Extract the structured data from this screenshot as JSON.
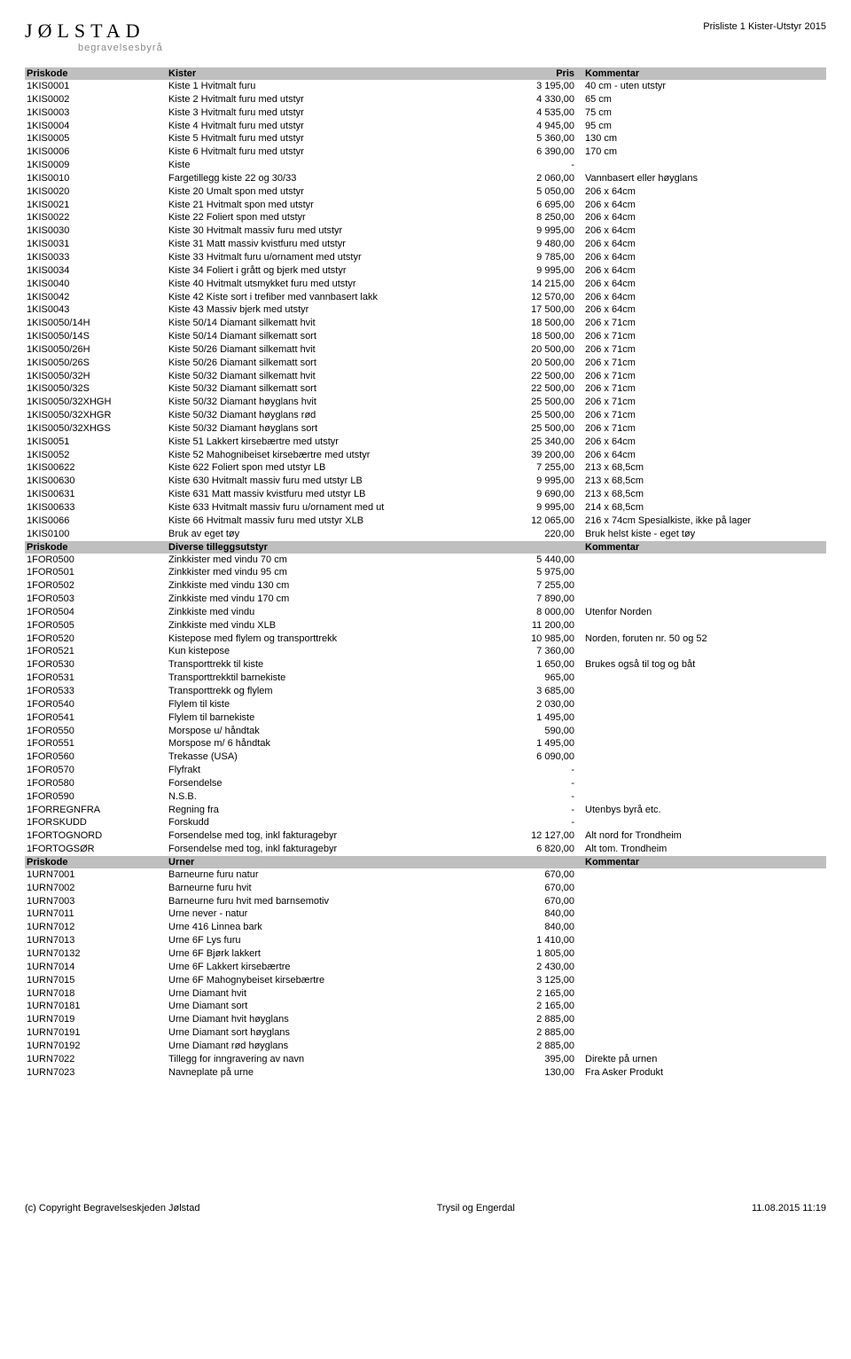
{
  "doc_title": "Prisliste 1 Kister-Utstyr 2015",
  "logo": {
    "text": "JØLSTAD",
    "sub": "begravelsesbyrå"
  },
  "sections": [
    {
      "header": {
        "code": "Priskode",
        "desc": "Kister",
        "price": "Pris",
        "comment": "Kommentar"
      },
      "rows": [
        {
          "code": "1KIS0001",
          "desc": "Kiste 1 Hvitmalt furu",
          "price": "3 195,00",
          "comment": "40 cm - uten utstyr"
        },
        {
          "code": "1KIS0002",
          "desc": "Kiste 2 Hvitmalt furu med utstyr",
          "price": "4 330,00",
          "comment": "65 cm"
        },
        {
          "code": "1KIS0003",
          "desc": "Kiste 3 Hvitmalt furu med utstyr",
          "price": "4 535,00",
          "comment": "75 cm"
        },
        {
          "code": "1KIS0004",
          "desc": "Kiste 4 Hvitmalt furu med utstyr",
          "price": "4 945,00",
          "comment": "95 cm"
        },
        {
          "code": "1KIS0005",
          "desc": "Kiste 5 Hvitmalt furu med utstyr",
          "price": "5 360,00",
          "comment": "130 cm"
        },
        {
          "code": "1KIS0006",
          "desc": "Kiste 6 Hvitmalt furu med utstyr",
          "price": "6 390,00",
          "comment": "170 cm"
        },
        {
          "code": "1KIS0009",
          "desc": "Kiste",
          "price": "-",
          "comment": ""
        },
        {
          "code": "1KIS0010",
          "desc": "Fargetillegg kiste 22 og 30/33",
          "price": "2 060,00",
          "comment": "Vannbasert eller høyglans"
        },
        {
          "code": "1KIS0020",
          "desc": "Kiste 20 Umalt spon med utstyr",
          "price": "5 050,00",
          "comment": "206 x 64cm"
        },
        {
          "code": "1KIS0021",
          "desc": "Kiste 21 Hvitmalt spon med utstyr",
          "price": "6 695,00",
          "comment": "206 x 64cm"
        },
        {
          "code": "1KIS0022",
          "desc": "Kiste 22 Foliert spon med utstyr",
          "price": "8 250,00",
          "comment": "206 x 64cm"
        },
        {
          "code": "1KIS0030",
          "desc": "Kiste 30 Hvitmalt massiv furu med utstyr",
          "price": "9 995,00",
          "comment": "206 x 64cm"
        },
        {
          "code": "1KIS0031",
          "desc": "Kiste 31 Matt massiv kvistfuru med utstyr",
          "price": "9 480,00",
          "comment": "206 x 64cm"
        },
        {
          "code": "1KIS0033",
          "desc": "Kiste 33 Hvitmalt furu u/ornament med utstyr",
          "price": "9 785,00",
          "comment": "206 x 64cm"
        },
        {
          "code": "1KIS0034",
          "desc": "Kiste 34 Foliert i grått og bjerk med utstyr",
          "price": "9 995,00",
          "comment": "206 x 64cm"
        },
        {
          "code": "1KIS0040",
          "desc": "Kiste 40 Hvitmalt utsmykket furu med utstyr",
          "price": "14 215,00",
          "comment": "206 x 64cm"
        },
        {
          "code": "1KIS0042",
          "desc": "Kiste 42 Kiste sort i trefiber med vannbasert lakk",
          "price": "12 570,00",
          "comment": "206 x 64cm"
        },
        {
          "code": "1KIS0043",
          "desc": "Kiste 43 Massiv bjerk med utstyr",
          "price": "17 500,00",
          "comment": "206 x 64cm"
        },
        {
          "code": "1KIS0050/14H",
          "desc": "Kiste 50/14 Diamant silkematt hvit",
          "price": "18 500,00",
          "comment": "206 x 71cm"
        },
        {
          "code": "1KIS0050/14S",
          "desc": "Kiste 50/14 Diamant silkematt sort",
          "price": "18 500,00",
          "comment": "206 x 71cm"
        },
        {
          "code": "1KIS0050/26H",
          "desc": "Kiste 50/26 Diamant silkematt hvit",
          "price": "20 500,00",
          "comment": "206 x 71cm"
        },
        {
          "code": "1KIS0050/26S",
          "desc": "Kiste 50/26 Diamant silkematt sort",
          "price": "20 500,00",
          "comment": "206 x 71cm"
        },
        {
          "code": "1KIS0050/32H",
          "desc": "Kiste 50/32 Diamant silkematt hvit",
          "price": "22 500,00",
          "comment": "206 x 71cm"
        },
        {
          "code": "1KIS0050/32S",
          "desc": "Kiste 50/32 Diamant silkematt sort",
          "price": "22 500,00",
          "comment": "206 x 71cm"
        },
        {
          "code": "1KIS0050/32XHGH",
          "desc": "Kiste 50/32 Diamant høyglans hvit",
          "price": "25 500,00",
          "comment": "206 x 71cm"
        },
        {
          "code": "1KIS0050/32XHGR",
          "desc": "Kiste 50/32 Diamant høyglans rød",
          "price": "25 500,00",
          "comment": "206 x 71cm"
        },
        {
          "code": "1KIS0050/32XHGS",
          "desc": "Kiste 50/32 Diamant høyglans sort",
          "price": "25 500,00",
          "comment": "206 x 71cm"
        },
        {
          "code": "1KIS0051",
          "desc": "Kiste 51 Lakkert kirsebærtre med utstyr",
          "price": "25 340,00",
          "comment": "206 x 64cm"
        },
        {
          "code": "1KIS0052",
          "desc": "Kiste 52 Mahognibeiset kirsebærtre med utstyr",
          "price": "39 200,00",
          "comment": "206 x 64cm"
        },
        {
          "code": "1KIS00622",
          "desc": "Kiste 622 Foliert spon med utstyr LB",
          "price": "7 255,00",
          "comment": "213 x 68,5cm"
        },
        {
          "code": "1KIS00630",
          "desc": "Kiste 630 Hvitmalt massiv furu med utstyr LB",
          "price": "9 995,00",
          "comment": "213 x 68,5cm"
        },
        {
          "code": "1KIS00631",
          "desc": "Kiste 631 Matt massiv kvistfuru med utstyr LB",
          "price": "9 690,00",
          "comment": "213 x 68,5cm"
        },
        {
          "code": "1KIS00633",
          "desc": "Kiste 633 Hvitmalt massiv furu u/ornament med ut",
          "price": "9 995,00",
          "comment": "214 x 68,5cm"
        },
        {
          "code": "1KIS0066",
          "desc": "Kiste 66 Hvitmalt massiv furu med utstyr XLB",
          "price": "12 065,00",
          "comment": "216 x 74cm Spesialkiste, ikke på lager"
        },
        {
          "code": "1KIS0100",
          "desc": "Bruk av eget tøy",
          "price": "220,00",
          "comment": "Bruk helst kiste - eget tøy"
        }
      ]
    },
    {
      "header": {
        "code": "Priskode",
        "desc": "Diverse  tilleggsutstyr",
        "price": "",
        "comment": "Kommentar"
      },
      "rows": [
        {
          "code": "1FOR0500",
          "desc": "Zinkkister med vindu 70 cm",
          "price": "5 440,00",
          "comment": ""
        },
        {
          "code": "1FOR0501",
          "desc": "Zinkkister med vindu 95 cm",
          "price": "5 975,00",
          "comment": ""
        },
        {
          "code": "1FOR0502",
          "desc": "Zinkkiste med vindu 130 cm",
          "price": "7 255,00",
          "comment": ""
        },
        {
          "code": "1FOR0503",
          "desc": "Zinkkiste med vindu 170 cm",
          "price": "7 890,00",
          "comment": ""
        },
        {
          "code": "1FOR0504",
          "desc": "Zinkkiste med vindu",
          "price": "8 000,00",
          "comment": "Utenfor Norden"
        },
        {
          "code": "1FOR0505",
          "desc": "Zinkkiste med vindu  XLB",
          "price": "11 200,00",
          "comment": ""
        },
        {
          "code": "1FOR0520",
          "desc": "Kistepose med flylem og transporttrekk",
          "price": "10 985,00",
          "comment": "Norden, foruten nr. 50 og 52"
        },
        {
          "code": "1FOR0521",
          "desc": "Kun kistepose",
          "price": "7 360,00",
          "comment": ""
        },
        {
          "code": "1FOR0530",
          "desc": "Transporttrekk til kiste",
          "price": "1 650,00",
          "comment": "Brukes også til tog og båt"
        },
        {
          "code": "1FOR0531",
          "desc": "Transporttrekktil  barnekiste",
          "price": "965,00",
          "comment": ""
        },
        {
          "code": "1FOR0533",
          "desc": "Transporttrekk og flylem",
          "price": "3 685,00",
          "comment": ""
        },
        {
          "code": "1FOR0540",
          "desc": "Flylem til kiste",
          "price": "2 030,00",
          "comment": ""
        },
        {
          "code": "1FOR0541",
          "desc": "Flylem til barnekiste",
          "price": "1 495,00",
          "comment": ""
        },
        {
          "code": "1FOR0550",
          "desc": "Morspose u/ håndtak",
          "price": "590,00",
          "comment": ""
        },
        {
          "code": "1FOR0551",
          "desc": "Morspose m/ 6 håndtak",
          "price": "1 495,00",
          "comment": ""
        },
        {
          "code": "1FOR0560",
          "desc": "Trekasse (USA)",
          "price": "6 090,00",
          "comment": ""
        },
        {
          "code": "1FOR0570",
          "desc": "Flyfrakt",
          "price": "-",
          "comment": ""
        },
        {
          "code": "1FOR0580",
          "desc": "Forsendelse",
          "price": "-",
          "comment": ""
        },
        {
          "code": "1FOR0590",
          "desc": "N.S.B.",
          "price": "-",
          "comment": ""
        },
        {
          "code": "1FORREGNFRA",
          "desc": "Regning fra",
          "price": "-",
          "comment": "Utenbys byrå etc."
        },
        {
          "code": "1FORSKUDD",
          "desc": "Forskudd",
          "price": "-",
          "comment": ""
        },
        {
          "code": "1FORTOGNORD",
          "desc": "Forsendelse med tog, inkl fakturagebyr",
          "price": "12 127,00",
          "comment": "Alt nord for Trondheim"
        },
        {
          "code": "1FORTOGSØR",
          "desc": "Forsendelse med tog, inkl fakturagebyr",
          "price": "6 820,00",
          "comment": "Alt tom. Trondheim"
        }
      ]
    },
    {
      "header": {
        "code": "Priskode",
        "desc": "Urner",
        "price": "",
        "comment": "Kommentar"
      },
      "rows": [
        {
          "code": "1URN7001",
          "desc": "Barneurne furu natur",
          "price": "670,00",
          "comment": ""
        },
        {
          "code": "1URN7002",
          "desc": "Barneurne furu hvit",
          "price": "670,00",
          "comment": ""
        },
        {
          "code": "1URN7003",
          "desc": "Barneurne furu hvit med barnsemotiv",
          "price": "670,00",
          "comment": ""
        },
        {
          "code": "1URN7011",
          "desc": "Urne never - natur",
          "price": "840,00",
          "comment": ""
        },
        {
          "code": "1URN7012",
          "desc": "Urne 416 Linnea bark",
          "price": "840,00",
          "comment": ""
        },
        {
          "code": "1URN7013",
          "desc": "Urne 6F Lys furu",
          "price": "1 410,00",
          "comment": ""
        },
        {
          "code": "1URN70132",
          "desc": "Urne 6F Bjørk lakkert",
          "price": "1 805,00",
          "comment": ""
        },
        {
          "code": "1URN7014",
          "desc": "Urne 6F Lakkert kirsebærtre",
          "price": "2 430,00",
          "comment": ""
        },
        {
          "code": "1URN7015",
          "desc": "Urne 6F Mahognybeiset kirsebærtre",
          "price": "3 125,00",
          "comment": ""
        },
        {
          "code": "1URN7018",
          "desc": "Urne Diamant hvit",
          "price": "2 165,00",
          "comment": ""
        },
        {
          "code": "1URN70181",
          "desc": "Urne Diamant sort",
          "price": "2 165,00",
          "comment": ""
        },
        {
          "code": "1URN7019",
          "desc": "Urne Diamant hvit høyglans",
          "price": "2 885,00",
          "comment": ""
        },
        {
          "code": "1URN70191",
          "desc": "Urne Diamant sort høyglans",
          "price": "2 885,00",
          "comment": ""
        },
        {
          "code": "1URN70192",
          "desc": "Urne Diamant rød høyglans",
          "price": "2 885,00",
          "comment": ""
        },
        {
          "code": "1URN7022",
          "desc": "Tillegg for inngravering av navn",
          "price": "395,00",
          "comment": "Direkte på urnen"
        },
        {
          "code": "1URN7023",
          "desc": "Navneplate på urne",
          "price": "130,00",
          "comment": "Fra Asker Produkt"
        }
      ]
    }
  ],
  "footer": {
    "left": "(c) Copyright Begravelseskjeden Jølstad",
    "center": "Trysil og Engerdal",
    "right": "11.08.2015 11:19"
  }
}
